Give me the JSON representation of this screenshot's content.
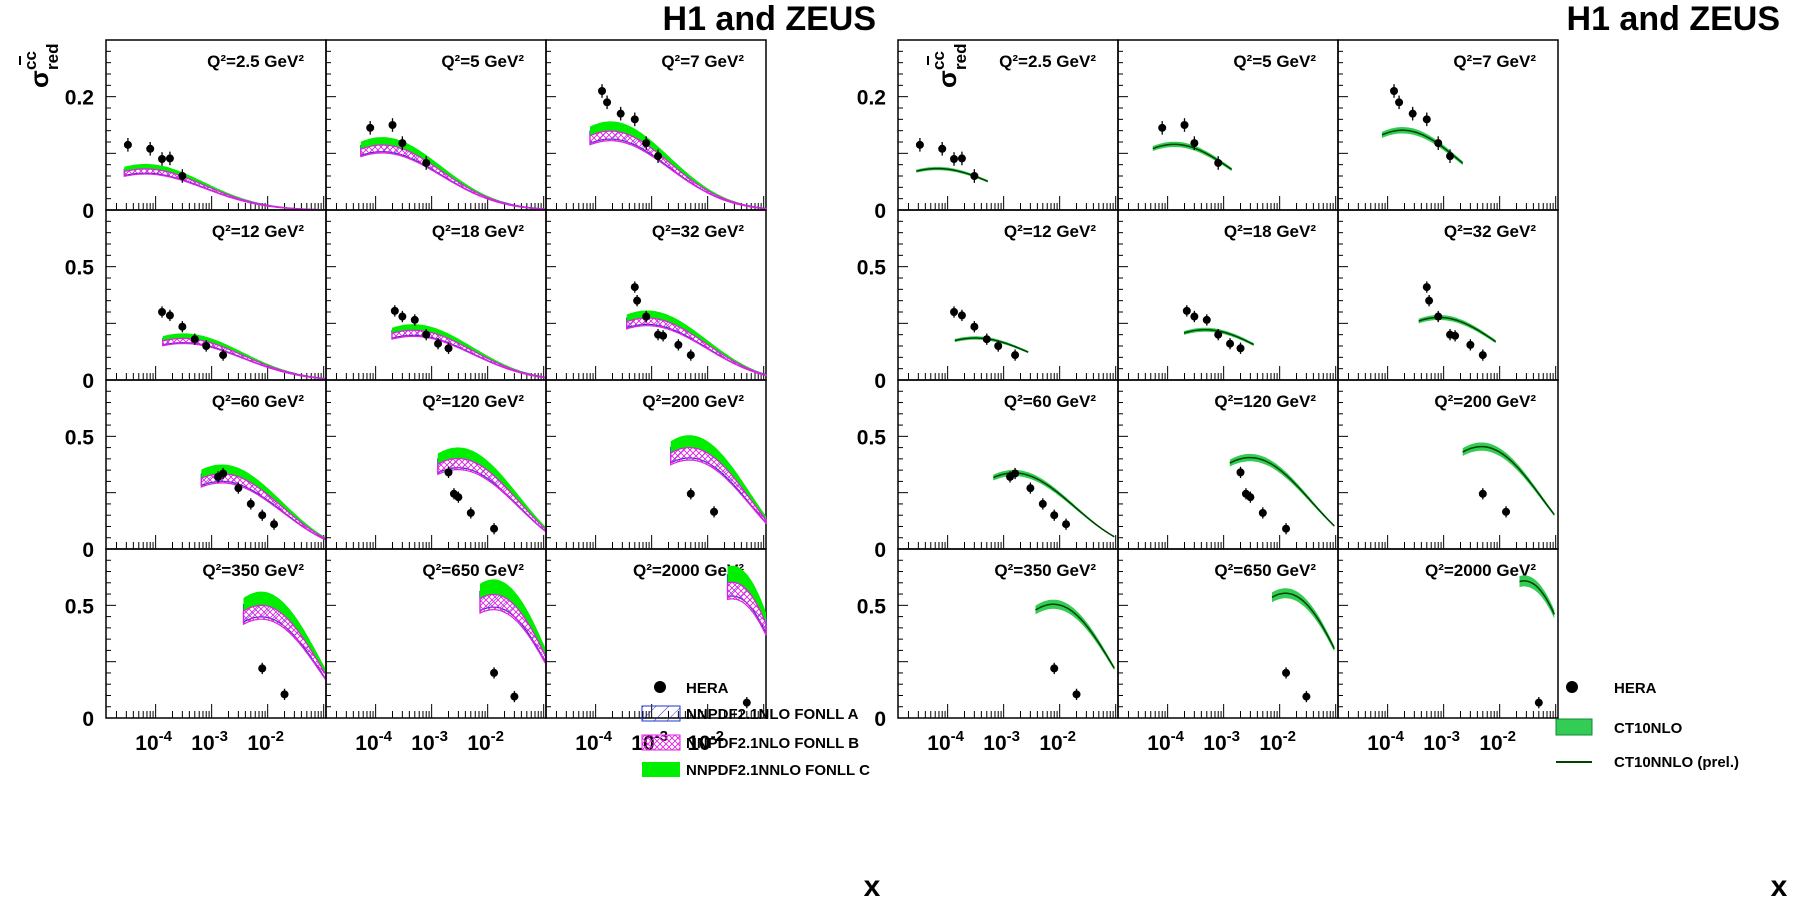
{
  "header": {
    "left_title": "H1 and ZEUS",
    "right_title": "H1 and ZEUS"
  },
  "axes": {
    "ylabel_sigma": "σ",
    "ylabel_sup": "cc",
    "ylabel_sub": "red",
    "xlabel": "x",
    "x_scale": "log",
    "x_range": [
      1.3e-05,
      0.11
    ],
    "x_ticks": [
      {
        "base": "10",
        "exp": "-4"
      },
      {
        "base": "10",
        "exp": "-3"
      },
      {
        "base": "10",
        "exp": "-2"
      }
    ],
    "y_ticks_row1": [
      "0",
      "0.2"
    ],
    "y_ticks_other": [
      "0",
      "0.5"
    ],
    "y_range_row1": [
      0,
      0.3
    ],
    "y_range_other": [
      0,
      0.75
    ]
  },
  "legend_left": {
    "data": "HERA",
    "a": "NNPDF2.1NLO  FONLL A",
    "b": "NNPDF2.1NLO  FONLL B",
    "c": "NNPDF2.1NNLO FONLL C"
  },
  "legend_right": {
    "data": "HERA",
    "band": "CT10NLO",
    "line": "CT10NNLO (prel.)"
  },
  "colors": {
    "fonll_a": "#2233cc",
    "fonll_b": "#e020e0",
    "fonll_c": "#00ee00",
    "ct10nlo": "#33cc55",
    "ct10nnlo": "#004400",
    "data": "#000000"
  },
  "chart_data": {
    "type": "scatter",
    "panels": [
      {
        "q2": "Q²=2.5 GeV²",
        "points": [
          [
            3.2e-05,
            0.115
          ],
          [
            8e-05,
            0.108
          ],
          [
            0.00013,
            0.09
          ],
          [
            0.00018,
            0.091
          ],
          [
            0.0003,
            0.06
          ]
        ]
      },
      {
        "q2": "Q²=5 GeV²",
        "points": [
          [
            8e-05,
            0.145
          ],
          [
            0.0002,
            0.15
          ],
          [
            0.0003,
            0.118
          ],
          [
            0.0008,
            0.083
          ]
        ]
      },
      {
        "q2": "Q²=7 GeV²",
        "points": [
          [
            0.00013,
            0.21
          ],
          [
            0.00016,
            0.19
          ],
          [
            0.00028,
            0.17
          ],
          [
            0.0005,
            0.16
          ],
          [
            0.0008,
            0.118
          ],
          [
            0.0013,
            0.095
          ]
        ]
      },
      {
        "q2": "Q²=12 GeV²",
        "points": [
          [
            0.00013,
            0.3
          ],
          [
            0.00018,
            0.285
          ],
          [
            0.0003,
            0.235
          ],
          [
            0.0005,
            0.18
          ],
          [
            0.0008,
            0.15
          ],
          [
            0.0016,
            0.11
          ]
        ]
      },
      {
        "q2": "Q²=18 GeV²",
        "points": [
          [
            0.00022,
            0.305
          ],
          [
            0.0003,
            0.28
          ],
          [
            0.0005,
            0.265
          ],
          [
            0.0008,
            0.2
          ],
          [
            0.0013,
            0.16
          ],
          [
            0.002,
            0.14
          ]
        ]
      },
      {
        "q2": "Q²=32 GeV²",
        "points": [
          [
            0.0005,
            0.41
          ],
          [
            0.00055,
            0.35
          ],
          [
            0.0008,
            0.28
          ],
          [
            0.0013,
            0.2
          ],
          [
            0.0016,
            0.195
          ],
          [
            0.003,
            0.155
          ],
          [
            0.005,
            0.11
          ]
        ]
      },
      {
        "q2": "Q²=60 GeV²",
        "points": [
          [
            0.0013,
            0.32
          ],
          [
            0.0016,
            0.335
          ],
          [
            0.003,
            0.27
          ],
          [
            0.005,
            0.2
          ],
          [
            0.008,
            0.15
          ],
          [
            0.013,
            0.11
          ]
        ]
      },
      {
        "q2": "Q²=120 GeV²",
        "points": [
          [
            0.002,
            0.34
          ],
          [
            0.0025,
            0.245
          ],
          [
            0.003,
            0.23
          ],
          [
            0.005,
            0.16
          ],
          [
            0.013,
            0.09
          ]
        ]
      },
      {
        "q2": "Q²=200 GeV²",
        "points": [
          [
            0.005,
            0.245
          ],
          [
            0.013,
            0.165
          ]
        ]
      },
      {
        "q2": "Q²=350 GeV²",
        "points": [
          [
            0.008,
            0.22
          ],
          [
            0.02,
            0.105
          ]
        ]
      },
      {
        "q2": "Q²=650 GeV²",
        "points": [
          [
            0.013,
            0.2
          ],
          [
            0.03,
            0.095
          ]
        ]
      },
      {
        "q2": "Q²=2000 GeV²",
        "points": [
          [
            0.05,
            0.068
          ]
        ]
      }
    ]
  }
}
